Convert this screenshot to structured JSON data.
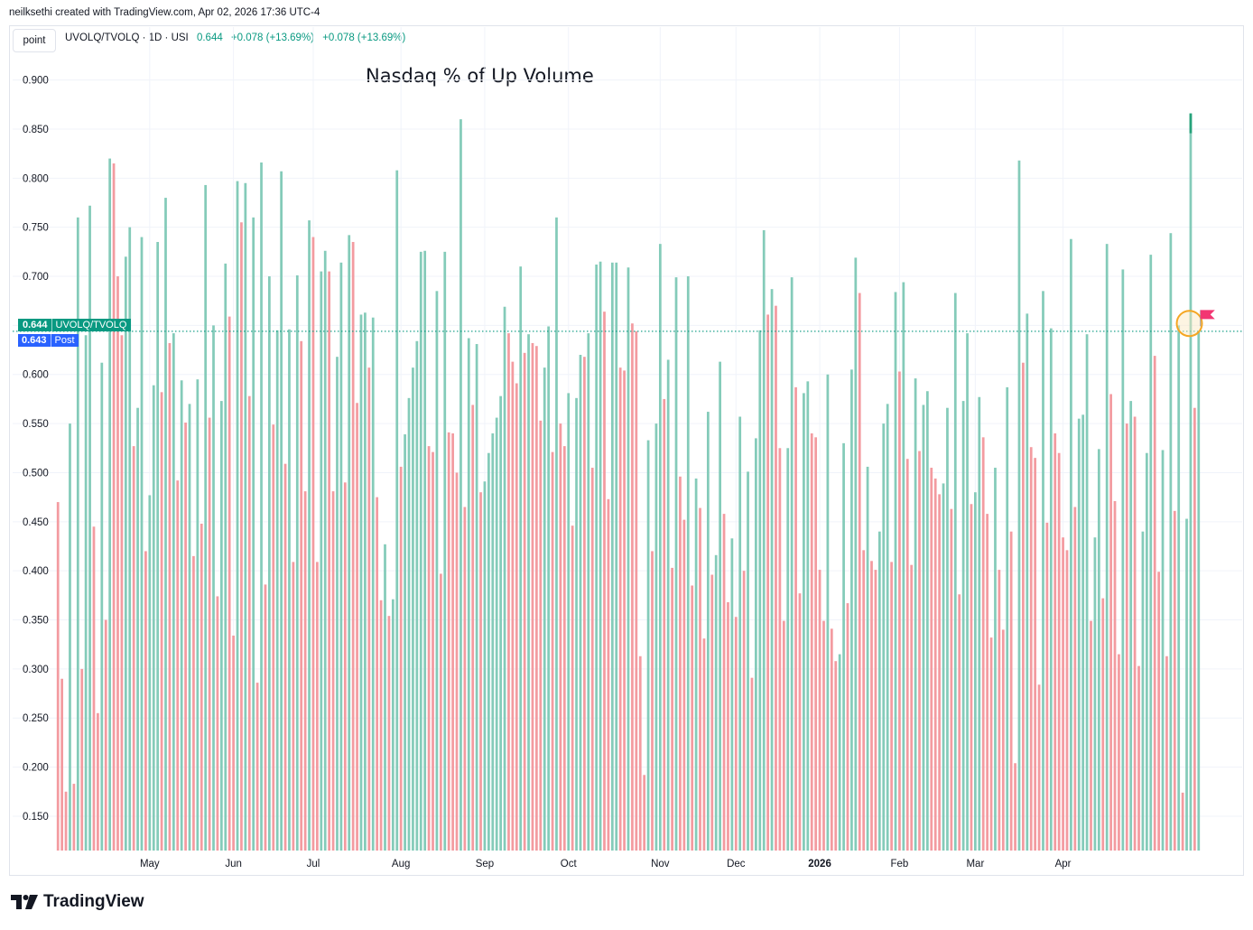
{
  "credit": "neilksethi created with TradingView.com, Apr 02, 2026 17:36 UTC-4",
  "toolbar": {
    "point_label": "point"
  },
  "legend": {
    "symbol": "UVOLQ/TVOLQ · 1D · USI",
    "last": "0.644",
    "change1": "+0.078 (+13.69%)",
    "change2": "+0.078 (+13.69%)"
  },
  "price_tags": {
    "last_value": "0.644",
    "last_label": "UVOLQ/TVOLQ",
    "post_value": "0.643",
    "post_label": "Post"
  },
  "brand": {
    "name": "TradingView"
  },
  "colors": {
    "up": "#84cbb9",
    "down": "#f39ba0",
    "accent": "#089981",
    "post": "#2962ff",
    "highlight": "#f5a623",
    "flag": "#f23672"
  },
  "chart_data": {
    "type": "bar",
    "title": "Nasdaq % of Up Volume",
    "xlabel": "",
    "ylabel": "",
    "ylim": [
      0.115,
      0.93
    ],
    "yticks": [
      "0.900",
      "0.850",
      "0.800",
      "0.750",
      "0.700",
      "0.650",
      "0.600",
      "0.550",
      "0.500",
      "0.450",
      "0.400",
      "0.350",
      "0.300",
      "0.250",
      "0.200",
      "0.150"
    ],
    "month_labels": [
      {
        "label": "May",
        "bar": 23
      },
      {
        "label": "Jun",
        "bar": 44
      },
      {
        "label": "Jul",
        "bar": 64
      },
      {
        "label": "Aug",
        "bar": 86
      },
      {
        "label": "Sep",
        "bar": 107
      },
      {
        "label": "Oct",
        "bar": 128
      },
      {
        "label": "Nov",
        "bar": 151
      },
      {
        "label": "Dec",
        "bar": 170
      },
      {
        "label": "2026",
        "bar": 191
      },
      {
        "label": "Feb",
        "bar": 211
      },
      {
        "label": "Mar",
        "bar": 230
      },
      {
        "label": "Apr",
        "bar": 252
      }
    ],
    "last_value": 0.644,
    "series": [
      {
        "name": "UVOLQ/TVOLQ",
        "values": [
          0.47,
          0.29,
          0.175,
          0.55,
          0.183,
          0.76,
          0.3,
          0.64,
          0.772,
          0.445,
          0.255,
          0.612,
          0.35,
          0.82,
          0.815,
          0.7,
          0.64,
          0.72,
          0.75,
          0.527,
          0.566,
          0.74,
          0.42,
          0.477,
          0.589,
          0.735,
          0.582,
          0.78,
          0.632,
          0.642,
          0.492,
          0.594,
          0.551,
          0.57,
          0.415,
          0.595,
          0.448,
          0.793,
          0.556,
          0.65,
          0.374,
          0.573,
          0.713,
          0.659,
          0.334,
          0.797,
          0.755,
          0.795,
          0.578,
          0.76,
          0.286,
          0.816,
          0.386,
          0.7,
          0.549,
          0.645,
          0.807,
          0.509,
          0.646,
          0.409,
          0.701,
          0.634,
          0.481,
          0.757,
          0.74,
          0.409,
          0.705,
          0.726,
          0.705,
          0.481,
          0.618,
          0.714,
          0.49,
          0.742,
          0.735,
          0.571,
          0.661,
          0.663,
          0.607,
          0.658,
          0.475,
          0.37,
          0.427,
          0.354,
          0.371,
          0.808,
          0.506,
          0.539,
          0.576,
          0.607,
          0.634,
          0.725,
          0.726,
          0.527,
          0.521,
          0.685,
          0.397,
          0.725,
          0.541,
          0.54,
          0.5,
          0.86,
          0.465,
          0.637,
          0.569,
          0.631,
          0.48,
          0.491,
          0.52,
          0.54,
          0.556,
          0.578,
          0.669,
          0.642,
          0.613,
          0.591,
          0.71,
          0.622,
          0.641,
          0.632,
          0.629,
          0.553,
          0.607,
          0.649,
          0.521,
          0.76,
          0.55,
          0.527,
          0.581,
          0.446,
          0.576,
          0.62,
          0.618,
          0.642,
          0.505,
          0.712,
          0.715,
          0.664,
          0.473,
          0.714,
          0.714,
          0.607,
          0.604,
          0.709,
          0.652,
          0.644,
          0.313,
          0.192,
          0.533,
          0.42,
          0.55,
          0.733,
          0.575,
          0.615,
          0.403,
          0.699,
          0.496,
          0.452,
          0.7,
          0.385,
          0.494,
          0.464,
          0.331,
          0.562,
          0.396,
          0.416,
          0.613,
          0.458,
          0.368,
          0.433,
          0.353,
          0.557,
          0.4,
          0.501,
          0.291,
          0.535,
          0.645,
          0.747,
          0.661,
          0.687,
          0.67,
          0.525,
          0.349,
          0.525,
          0.699,
          0.587,
          0.377,
          0.581,
          0.593,
          0.54,
          0.536,
          0.401,
          0.349,
          0.6,
          0.341,
          0.308,
          0.315,
          0.53,
          0.367,
          0.605,
          0.719,
          0.683,
          0.421,
          0.506,
          0.41,
          0.401,
          0.44,
          0.55,
          0.57,
          0.409,
          0.684,
          0.603,
          0.694,
          0.514,
          0.406,
          0.596,
          0.522,
          0.569,
          0.583,
          0.505,
          0.494,
          0.478,
          0.489,
          0.566,
          0.463,
          0.683,
          0.376,
          0.573,
          0.642,
          0.468,
          0.48,
          0.577,
          0.536,
          0.458,
          0.332,
          0.505,
          0.401,
          0.34,
          0.587,
          0.44,
          0.204,
          0.818,
          0.612,
          0.662,
          0.526,
          0.515,
          0.284,
          0.685,
          0.449,
          0.647,
          0.54,
          0.52,
          0.434,
          0.421,
          0.738,
          0.465,
          0.555,
          0.559,
          0.641,
          0.349,
          0.434,
          0.524,
          0.372,
          0.733,
          0.58,
          0.471,
          0.315,
          0.707,
          0.55,
          0.573,
          0.557,
          0.303,
          0.44,
          0.52,
          0.722,
          0.619,
          0.399,
          0.523,
          0.313,
          0.744,
          0.461,
          0.65,
          0.174,
          0.453,
          0.866,
          0.566,
          0.644
        ]
      }
    ]
  }
}
